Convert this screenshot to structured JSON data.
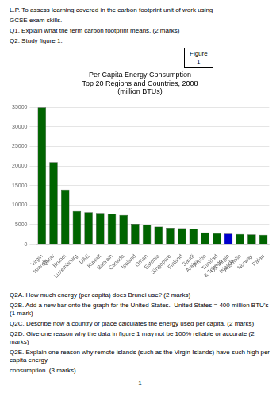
{
  "chart_data": {
    "type": "bar",
    "title": "Per Capita Energy Consumption\nTop 20 Regions and Countries, 2008\n(million BTUs)",
    "categories": [
      "Virgin\nIslands",
      "Qatar",
      "Brunei",
      "Luxembourg",
      "UAE",
      "Kuwait",
      "Bahrain",
      "Canada",
      "Iceland",
      "Oman",
      "Estonia",
      "Singapore",
      "Finland",
      "Saudi\nArabia",
      "Aruba",
      "Trinidad\n& Tobago",
      "US Virgin\nIslands",
      "Australia",
      "Norway",
      "Palau"
    ],
    "values": [
      35000,
      21000,
      14000,
      8500,
      8200,
      8000,
      7800,
      7500,
      5200,
      5000,
      4500,
      4200,
      4100,
      4000,
      3000,
      2800,
      2700,
      2600,
      2500,
      2400
    ],
    "colors": [
      "#006400",
      "#006400",
      "#006400",
      "#006400",
      "#006400",
      "#006400",
      "#006400",
      "#006400",
      "#006400",
      "#006400",
      "#006400",
      "#006400",
      "#006400",
      "#006400",
      "#006400",
      "#006400",
      "#0000CD",
      "#006400",
      "#006400",
      "#006400"
    ],
    "ylim": [
      0,
      37000
    ],
    "yticks": [
      0,
      5000,
      10000,
      15000,
      20000,
      25000,
      30000,
      35000
    ],
    "grid": true,
    "annotations": [
      "L.P. To assess learning covered in the carbon footprint unit of work using",
      "GCSE exam skills.",
      "Q1. Explain what the term carbon footprint means. (2 marks)",
      "Q2. Study figure 1.",
      "Figure\n1",
      "Q2A. How much energy (per capita) does Brunei use? (2 marks)",
      "Q2B. Add a new bar onto the graph for the United States.  United States = 400 million BTU’s   (1 mark)",
      "Q2C. Describe how a country or place calculates the energy used per capita. (2 marks)",
      "Q2D. Give one reason why the data in figure 1 may not be 100% reliable or accurate (2 marks)",
      "Q2E. Explain one reason why remote islands (such as the Virgin Islands) have such high per capita energy",
      "consumption. (3 marks)",
      "- 1 -"
    ]
  }
}
